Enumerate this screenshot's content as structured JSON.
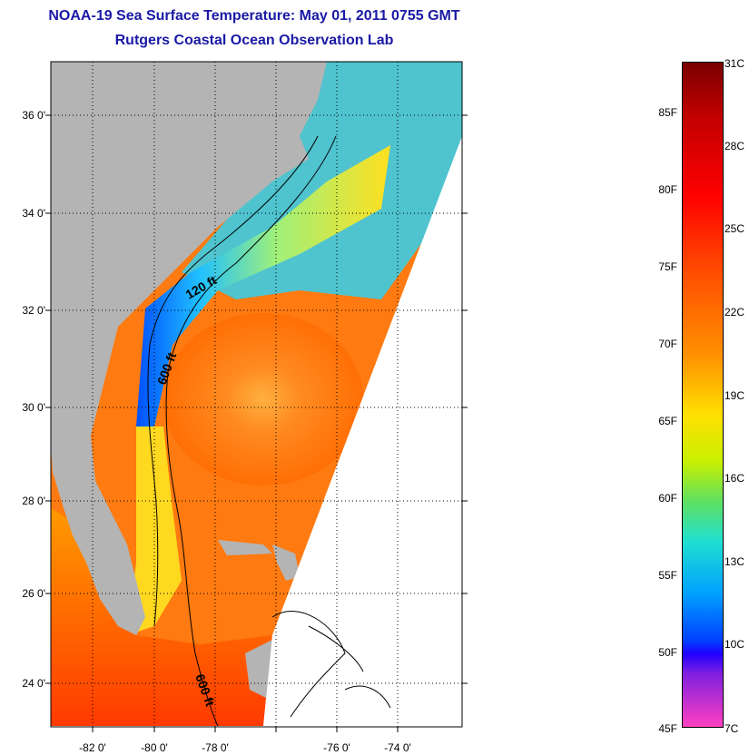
{
  "header": {
    "title": "NOAA-19 Sea Surface Temperature:  May 01, 2011 0755 GMT",
    "subtitle": "Rutgers Coastal Ocean Observation Lab"
  },
  "map": {
    "latitude_labels": [
      "36 0'",
      "34 0'",
      "32 0'",
      "30 0'",
      "28 0'",
      "26 0'",
      "24 0'"
    ],
    "longitude_labels": [
      "-82 0'",
      "-80 0'",
      "-78 0'",
      "-76 0'",
      "-74 0'"
    ],
    "contour_labels": [
      "120 ft",
      "600 ft",
      "600 ft"
    ]
  },
  "colorbar": {
    "fahrenheit_labels": [
      "85F",
      "80F",
      "75F",
      "70F",
      "65F",
      "60F",
      "55F",
      "50F",
      "45F"
    ],
    "celsius_labels": [
      "31C",
      "28C",
      "25C",
      "22C",
      "19C",
      "16C",
      "13C",
      "10C",
      "7C"
    ]
  },
  "colors": {
    "title": "#1a1aa6",
    "land": "#b4b4b4",
    "sst_warm": "#ff7a10",
    "sst_cool": "#20c0ff"
  }
}
